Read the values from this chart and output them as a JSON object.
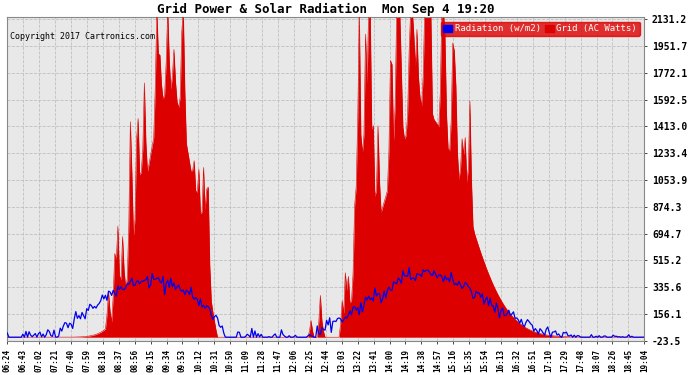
{
  "title": "Grid Power & Solar Radiation  Mon Sep 4 19:20",
  "copyright": "Copyright 2017 Cartronics.com",
  "legend_labels": [
    "Radiation (w/m2)",
    "Grid (AC Watts)"
  ],
  "yticks": [
    -23.5,
    156.1,
    335.6,
    515.2,
    694.7,
    874.3,
    1053.9,
    1233.4,
    1413.0,
    1592.5,
    1772.1,
    1951.7,
    2131.2
  ],
  "ymin": -23.5,
  "ymax": 2131.2,
  "background_color": "#ffffff",
  "plot_bg_color": "#e8e8e8",
  "grid_color": "#bbbbbb",
  "solar_color": "#dd0000",
  "radiation_color": "#0000ee",
  "x_tick_labels": [
    "06:24",
    "06:43",
    "07:02",
    "07:21",
    "07:40",
    "07:59",
    "08:18",
    "08:37",
    "08:56",
    "09:15",
    "09:34",
    "09:53",
    "10:12",
    "10:31",
    "10:50",
    "11:09",
    "11:28",
    "11:47",
    "12:06",
    "12:25",
    "12:44",
    "13:03",
    "13:22",
    "13:41",
    "14:00",
    "14:19",
    "14:38",
    "14:57",
    "15:16",
    "15:35",
    "15:54",
    "16:13",
    "16:32",
    "16:51",
    "17:10",
    "17:29",
    "17:48",
    "18:07",
    "18:26",
    "18:45",
    "19:04"
  ],
  "num_points": 410
}
